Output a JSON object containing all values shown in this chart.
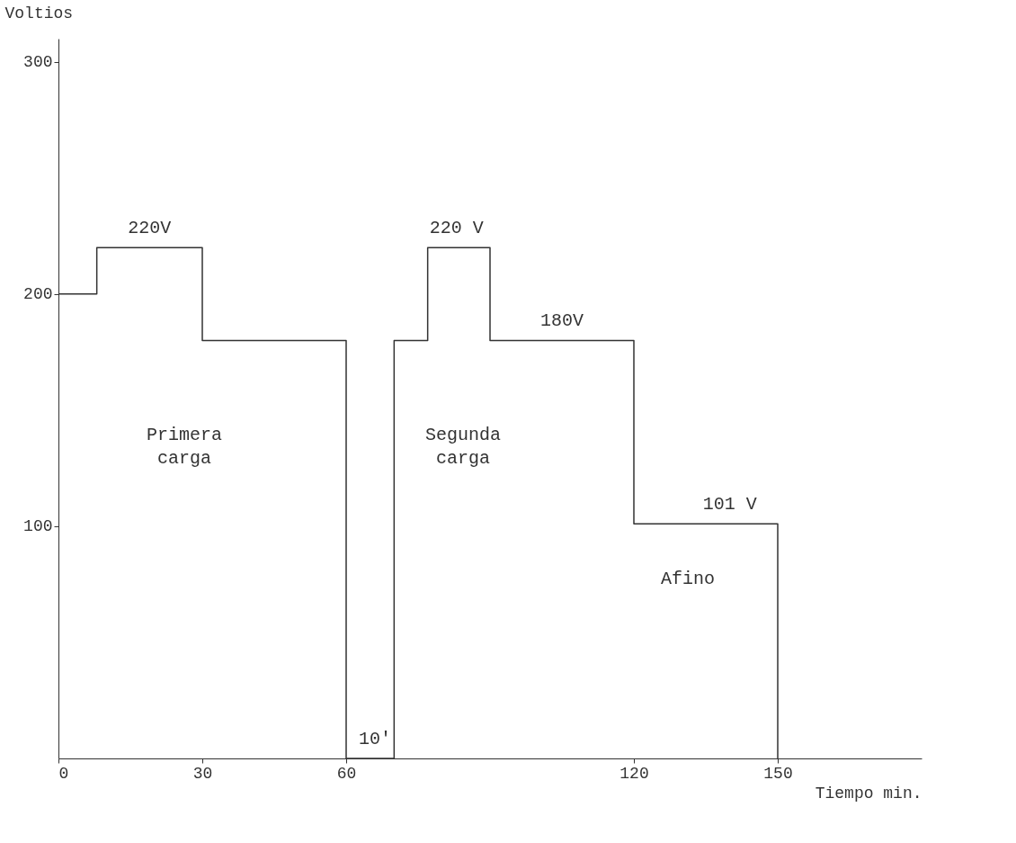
{
  "chart_data": {
    "type": "step",
    "xlabel": "Tiempo min.",
    "ylabel": "Voltios",
    "x": [
      0,
      8,
      30,
      60,
      70,
      77,
      90,
      120,
      150
    ],
    "values": [
      200,
      220,
      180,
      0,
      180,
      220,
      180,
      101,
      0
    ],
    "color": "#333333",
    "xlim": [
      0,
      180
    ],
    "xticks": [
      0,
      30,
      60,
      120,
      150
    ],
    "ylim": [
      0,
      310
    ],
    "yticks": [
      100,
      200,
      300
    ],
    "grid": false,
    "annotations": [
      {
        "text": "220V",
        "x": 19,
        "y": 220
      },
      {
        "text": "220 V",
        "x": 83,
        "y": 220
      },
      {
        "text": "180V",
        "x": 105,
        "y": 180
      },
      {
        "text": "101 V",
        "x": 140,
        "y": 101
      },
      "Primera carga",
      "Segunda carga",
      "Afino",
      {
        "text": "10'",
        "x": 66,
        "y": 0
      }
    ]
  }
}
